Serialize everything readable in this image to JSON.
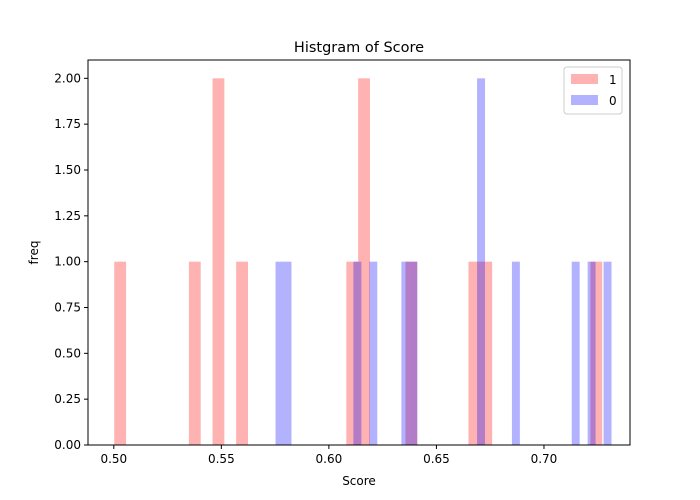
{
  "chart_data": {
    "type": "bar",
    "title": "Histgram of Score",
    "xlabel": "Score",
    "ylabel": "freq",
    "xlim": [
      0.488,
      0.74
    ],
    "ylim": [
      0,
      2.1
    ],
    "xticks": [
      "0.50",
      "0.55",
      "0.60",
      "0.65",
      "0.70"
    ],
    "xtick_values": [
      0.5,
      0.55,
      0.6,
      0.65,
      0.7
    ],
    "yticks": [
      "0.00",
      "0.25",
      "0.50",
      "0.75",
      "1.00",
      "1.25",
      "1.50",
      "1.75",
      "2.00"
    ],
    "ytick_values": [
      0,
      0.25,
      0.5,
      0.75,
      1.0,
      1.25,
      1.5,
      1.75,
      2.0
    ],
    "grid": false,
    "legend_position": "top-right",
    "series": [
      {
        "name": "1",
        "color": "#ff0000",
        "opacity": 0.3,
        "bins": [
          {
            "x0": 0.5002,
            "x1": 0.5057,
            "count": 1
          },
          {
            "x0": 0.5349,
            "x1": 0.5404,
            "count": 1
          },
          {
            "x0": 0.5459,
            "x1": 0.5514,
            "count": 2
          },
          {
            "x0": 0.5569,
            "x1": 0.5624,
            "count": 1
          },
          {
            "x0": 0.6081,
            "x1": 0.6136,
            "count": 1
          },
          {
            "x0": 0.6136,
            "x1": 0.6191,
            "count": 2
          },
          {
            "x0": 0.6356,
            "x1": 0.6411,
            "count": 1
          },
          {
            "x0": 0.6649,
            "x1": 0.6704,
            "count": 1
          },
          {
            "x0": 0.6704,
            "x1": 0.6759,
            "count": 1
          },
          {
            "x0": 0.7216,
            "x1": 0.7271,
            "count": 1
          }
        ]
      },
      {
        "name": "0",
        "color": "#0000ff",
        "opacity": 0.3,
        "bins": [
          {
            "x0": 0.5752,
            "x1": 0.5789,
            "count": 1
          },
          {
            "x0": 0.5789,
            "x1": 0.5826,
            "count": 1
          },
          {
            "x0": 0.6114,
            "x1": 0.6151,
            "count": 1
          },
          {
            "x0": 0.6188,
            "x1": 0.6225,
            "count": 1
          },
          {
            "x0": 0.6337,
            "x1": 0.6374,
            "count": 1
          },
          {
            "x0": 0.6374,
            "x1": 0.6411,
            "count": 1
          },
          {
            "x0": 0.6689,
            "x1": 0.6726,
            "count": 2
          },
          {
            "x0": 0.6851,
            "x1": 0.6888,
            "count": 1
          },
          {
            "x0": 0.7129,
            "x1": 0.7166,
            "count": 1
          },
          {
            "x0": 0.7203,
            "x1": 0.724,
            "count": 1
          },
          {
            "x0": 0.7277,
            "x1": 0.7314,
            "count": 1
          }
        ]
      }
    ]
  }
}
